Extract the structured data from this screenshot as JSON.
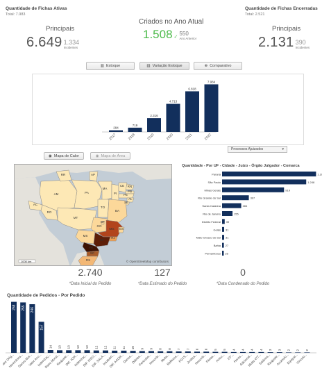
{
  "kpi_left": {
    "title": "Quantidade de Fichas Ativas",
    "total": "Total: 7.983",
    "label": "Principais",
    "big": "6.649",
    "small": "1.334",
    "tiny": "Incidentes"
  },
  "kpi_center": {
    "title": "Criados no Ano Atual",
    "big": "1.508",
    "arrow": "✓",
    "small": "550",
    "tiny": "Ano Anterior"
  },
  "kpi_right": {
    "title": "Quantidade de Fichas Encerradas",
    "total": "Total: 2.521",
    "label": "Principais",
    "big": "2.131",
    "small": "390",
    "tiny": "Incidentes"
  },
  "buttons": [
    {
      "label": "Estoque",
      "icon": "▥"
    },
    {
      "label": "Variação Estoque",
      "icon": "▥"
    },
    {
      "label": "Comparativo",
      "icon": "⊕"
    }
  ],
  "map_buttons": [
    {
      "label": "Mapa de Calor",
      "icon": "◉"
    },
    {
      "label": "Mapa de Área",
      "icon": "◉"
    }
  ],
  "dropdown": {
    "label": "Processos Ajuizados",
    "arrow": "▾"
  },
  "map": {
    "scale": "1000 km",
    "attribution": "© OpenStreetMap contributors",
    "state_labels": [
      "RR",
      "AP",
      "AM",
      "PA",
      "MA",
      "CE",
      "RN",
      "PB",
      "PE",
      "PI",
      "AL",
      "SE",
      "AC",
      "RO",
      "TO",
      "BA",
      "MT",
      "DF",
      "GO",
      "MG",
      "ES",
      "MS",
      "SP",
      "RJ",
      "PR",
      "SC",
      "RS"
    ]
  },
  "stats": [
    {
      "value": "2.740",
      "caption": "*Data Inicial do Pedido"
    },
    {
      "value": "127",
      "caption": "*Data Estimado do Pedido"
    },
    {
      "value": "0",
      "caption": "*Data Condenado do Pedido"
    }
  ],
  "bottom_title": "Quantidade de Pedidos - Por Pedido",
  "hbar_title": "Quantidade - Por UF - Cidade - Juízo - Órgão Julgador - Comarca",
  "chart_data": [
    {
      "type": "bar",
      "categories": [
        "2017",
        "2018",
        "2019",
        "2020",
        "2021",
        "2022"
      ],
      "values": [
        284,
        719,
        2316,
        4713,
        6818,
        7984
      ],
      "value_labels": [
        "284",
        "719",
        "2.316",
        "4.713",
        "6.818",
        "7.984"
      ],
      "ylim": [
        0,
        8500
      ],
      "title": "",
      "xlabel": "",
      "ylabel": ""
    },
    {
      "type": "bar",
      "orientation": "horizontal",
      "categories": [
        "Paraná",
        "São Paulo",
        "Minas Gerais",
        "Rio Grande do Sul",
        "Santa Catarina",
        "Rio de Janeiro",
        "Distrito Federal",
        "Goiás",
        "Mato Grosso do Sul",
        "Bahia",
        "Pernambuco"
      ],
      "values": [
        1394,
        1248,
        919,
        397,
        284,
        155,
        39,
        31,
        31,
        27,
        25
      ],
      "value_labels": [
        "1.394",
        "1.248",
        "919",
        "397",
        "284",
        "155",
        "39",
        "31",
        "31",
        "27",
        "25"
      ],
      "xlim": [
        0,
        1400
      ]
    },
    {
      "type": "bar",
      "categories": [
        "Valor Orig...",
        "Honorários...",
        "Danos Mor...",
        "Valor Aco...",
        "Indenizaç...",
        "Dano Moral...",
        "Reajuste...",
        "DIF. JOR...",
        "Indenizaç...",
        "DIF. PISO...",
        "DIF. SALÁ...",
        "Insalubri...",
        "DIF. ACOR...",
        "Danos...",
        "Diárias...",
        "Periculos...",
        "Honorár...",
        "Multa...",
        "Reflexos...",
        "FGTS...",
        "Justiça...",
        "Honorár...",
        "Férias...",
        "Aviso...",
        "13º...",
        "Horas...",
        "Adicional...",
        "Multa 477...",
        "Salários...",
        "Reajuste...",
        "Acúmulo...",
        "Equipar...",
        "Vínculo..."
      ],
      "values": [
        258,
        255,
        246,
        157,
        14,
        13,
        13,
        13,
        13,
        12,
        12,
        11,
        11,
        10,
        9,
        9,
        8,
        8,
        7,
        7,
        6,
        6,
        5,
        5,
        4,
        4,
        4,
        4,
        3,
        3,
        2,
        2,
        2
      ],
      "ylim": [
        0,
        260
      ]
    }
  ]
}
